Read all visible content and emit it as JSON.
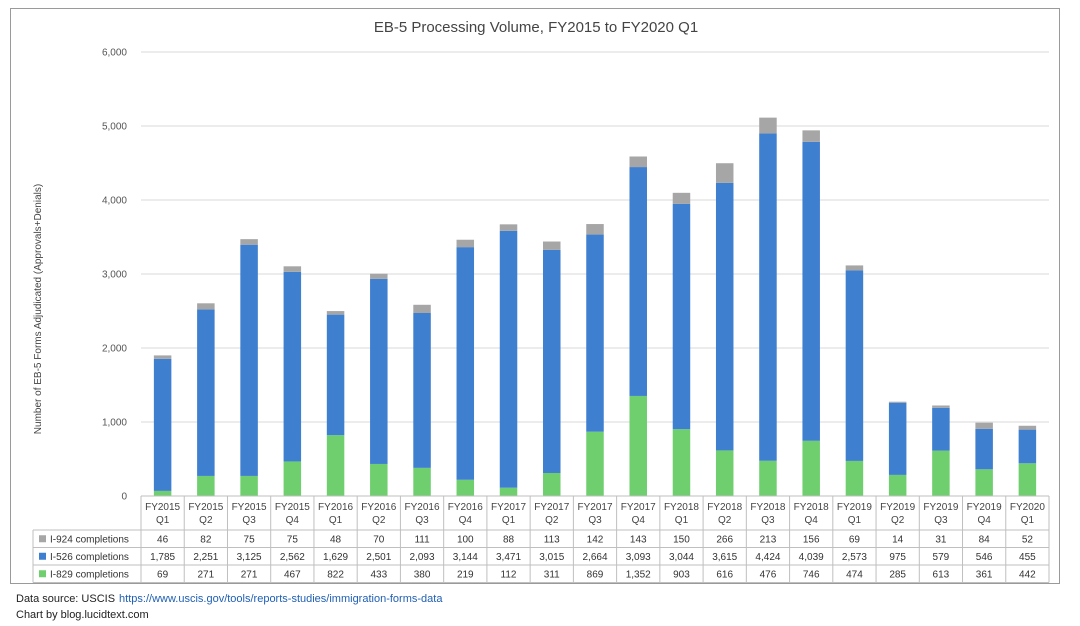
{
  "chart_data": {
    "type": "bar",
    "stacked": true,
    "title": "EB-5 Processing Volume, FY2015 to FY2020 Q1",
    "ylabel": "Number of EB-5 Forms Adjudicated (Approvals+Denials)",
    "ylim": [
      0,
      6000
    ],
    "yticks": [
      "0",
      "1,000",
      "2,000",
      "3,000",
      "4,000",
      "5,000",
      "6,000"
    ],
    "grid": true,
    "legend_placement": "data-table-rows",
    "categories": [
      {
        "fy": "FY2015",
        "q": "Q1"
      },
      {
        "fy": "FY2015",
        "q": "Q2"
      },
      {
        "fy": "FY2015",
        "q": "Q3"
      },
      {
        "fy": "FY2015",
        "q": "Q4"
      },
      {
        "fy": "FY2016",
        "q": "Q1"
      },
      {
        "fy": "FY2016",
        "q": "Q2"
      },
      {
        "fy": "FY2016",
        "q": "Q3"
      },
      {
        "fy": "FY2016",
        "q": "Q4"
      },
      {
        "fy": "FY2017",
        "q": "Q1"
      },
      {
        "fy": "FY2017",
        "q": "Q2"
      },
      {
        "fy": "FY2017",
        "q": "Q3"
      },
      {
        "fy": "FY2017",
        "q": "Q4"
      },
      {
        "fy": "FY2018",
        "q": "Q1"
      },
      {
        "fy": "FY2018",
        "q": "Q2"
      },
      {
        "fy": "FY2018",
        "q": "Q3"
      },
      {
        "fy": "FY2018",
        "q": "Q4"
      },
      {
        "fy": "FY2019",
        "q": "Q1"
      },
      {
        "fy": "FY2019",
        "q": "Q2"
      },
      {
        "fy": "FY2019",
        "q": "Q3"
      },
      {
        "fy": "FY2019",
        "q": "Q4"
      },
      {
        "fy": "FY2020",
        "q": "Q1"
      }
    ],
    "series": [
      {
        "name": "I-924 completions",
        "color": "#a6a6a6",
        "values": [
          46,
          82,
          75,
          75,
          48,
          70,
          111,
          100,
          88,
          113,
          142,
          143,
          150,
          266,
          213,
          156,
          69,
          14,
          31,
          84,
          52
        ],
        "labels": [
          "46",
          "82",
          "75",
          "75",
          "48",
          "70",
          "111",
          "100",
          "88",
          "113",
          "142",
          "143",
          "150",
          "266",
          "213",
          "156",
          "69",
          "14",
          "31",
          "84",
          "52"
        ]
      },
      {
        "name": "I-526 completions",
        "color": "#3f7fcf",
        "values": [
          1785,
          2251,
          3125,
          2562,
          1629,
          2501,
          2093,
          3144,
          3471,
          3015,
          2664,
          3093,
          3044,
          3615,
          4424,
          4039,
          2573,
          975,
          579,
          546,
          455
        ],
        "labels": [
          "1,785",
          "2,251",
          "3,125",
          "2,562",
          "1,629",
          "2,501",
          "2,093",
          "3,144",
          "3,471",
          "3,015",
          "2,664",
          "3,093",
          "3,044",
          "3,615",
          "4,424",
          "4,039",
          "2,573",
          "975",
          "579",
          "546",
          "455"
        ]
      },
      {
        "name": "I-829 completions",
        "color": "#6fcf6f",
        "values": [
          69,
          271,
          271,
          467,
          822,
          433,
          380,
          219,
          112,
          311,
          869,
          1352,
          903,
          616,
          476,
          746,
          474,
          285,
          613,
          361,
          442
        ],
        "labels": [
          "69",
          "271",
          "271",
          "467",
          "822",
          "433",
          "380",
          "219",
          "112",
          "311",
          "869",
          "1,352",
          "903",
          "616",
          "476",
          "746",
          "474",
          "285",
          "613",
          "361",
          "442"
        ]
      }
    ]
  },
  "footer": {
    "source_label": "Data source: USCIS",
    "source_url": "https://www.uscis.gov/tools/reports-studies/immigration-forms-data",
    "credit": "Chart by blog.lucidtext.com"
  }
}
